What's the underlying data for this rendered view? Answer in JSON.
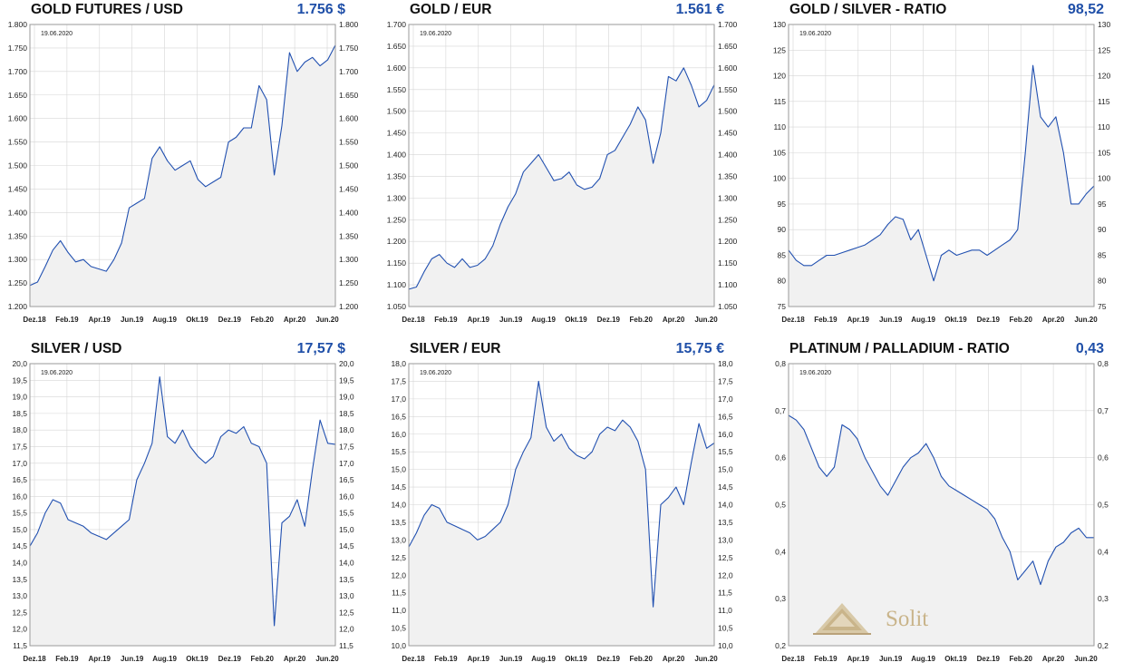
{
  "colors": {
    "line": "#2150b0",
    "fill": "#f1f1f1",
    "value": "#1f4fa8",
    "grid": "#d6d6d6"
  },
  "watermark": {
    "icon": "pyramid-icon",
    "text": "Solit"
  },
  "chart_data": [
    {
      "type": "line",
      "title": "GOLD FUTURES / USD",
      "value": "1.756 $",
      "date": "19.06.2020",
      "ylim": [
        1200,
        1800
      ],
      "yticks": [
        1200,
        1250,
        1300,
        1350,
        1400,
        1450,
        1500,
        1550,
        1600,
        1650,
        1700,
        1750,
        1800
      ],
      "decimals": 3,
      "x_labels": [
        "Dez.18",
        "Feb.19",
        "Apr.19",
        "Jun.19",
        "Aug.19",
        "Okt.19",
        "Dez.19",
        "Feb.20",
        "Apr.20",
        "Jun.20"
      ],
      "y": [
        1245,
        1252,
        1285,
        1320,
        1340,
        1315,
        1295,
        1300,
        1285,
        1280,
        1275,
        1300,
        1335,
        1410,
        1420,
        1430,
        1515,
        1540,
        1510,
        1490,
        1500,
        1510,
        1470,
        1455,
        1465,
        1475,
        1550,
        1560,
        1580,
        1580,
        1670,
        1640,
        1480,
        1585,
        1740,
        1700,
        1720,
        1730,
        1712,
        1725,
        1756
      ]
    },
    {
      "type": "line",
      "title": "GOLD / EUR",
      "value": "1.561 €",
      "date": "19.06.2020",
      "ylim": [
        1050,
        1700
      ],
      "yticks": [
        1050,
        1100,
        1150,
        1200,
        1250,
        1300,
        1350,
        1400,
        1450,
        1500,
        1550,
        1600,
        1650,
        1700
      ],
      "decimals": 3,
      "x_labels": [
        "Dez.18",
        "Feb.19",
        "Apr.19",
        "Jun.19",
        "Aug.19",
        "Okt.19",
        "Dez.19",
        "Feb.20",
        "Apr.20",
        "Jun.20"
      ],
      "y": [
        1090,
        1095,
        1130,
        1160,
        1170,
        1150,
        1140,
        1160,
        1140,
        1145,
        1160,
        1190,
        1240,
        1280,
        1310,
        1360,
        1380,
        1400,
        1370,
        1340,
        1345,
        1360,
        1330,
        1320,
        1325,
        1345,
        1400,
        1410,
        1440,
        1470,
        1510,
        1480,
        1380,
        1450,
        1580,
        1570,
        1600,
        1560,
        1510,
        1525,
        1561
      ]
    },
    {
      "type": "line",
      "title": "GOLD / SILVER - RATIO",
      "value": "98,52",
      "date": "19.06.2020",
      "ylim": [
        75,
        130
      ],
      "yticks": [
        75,
        80,
        85,
        90,
        95,
        100,
        105,
        110,
        115,
        120,
        125,
        130
      ],
      "decimals": 0,
      "x_labels": [
        "Dez.18",
        "Feb.19",
        "Apr.19",
        "Jun.19",
        "Aug.19",
        "Okt.19",
        "Dez.19",
        "Feb.20",
        "Apr.20",
        "Jun.20"
      ],
      "y": [
        86,
        84,
        83,
        83,
        84,
        85,
        85,
        85.5,
        86,
        86.5,
        87,
        88,
        89,
        91,
        92.5,
        92,
        88,
        90,
        85,
        80,
        85,
        86,
        85,
        85.5,
        86,
        86,
        85,
        86,
        87,
        88,
        90,
        105,
        122,
        112,
        110,
        112,
        105,
        95,
        95,
        97,
        98.52
      ]
    },
    {
      "type": "line",
      "title": "SILVER / USD",
      "value": "17,57 $",
      "date": "19.06.2020",
      "ylim": [
        11.5,
        20
      ],
      "yticks": [
        11.5,
        12,
        12.5,
        13,
        13.5,
        14,
        14.5,
        15,
        15.5,
        16,
        16.5,
        17,
        17.5,
        18,
        18.5,
        19,
        19.5,
        20
      ],
      "decimals": 1,
      "x_labels": [
        "Dez.18",
        "Feb.19",
        "Apr.19",
        "Jun.19",
        "Aug.19",
        "Okt.19",
        "Dez.19",
        "Feb.20",
        "Apr.20",
        "Jun.20"
      ],
      "y": [
        14.5,
        14.9,
        15.5,
        15.9,
        15.8,
        15.3,
        15.2,
        15.1,
        14.9,
        14.8,
        14.7,
        14.9,
        15.1,
        15.3,
        16.5,
        17.0,
        17.6,
        19.6,
        17.8,
        17.6,
        18.0,
        17.5,
        17.2,
        17.0,
        17.2,
        17.8,
        18.0,
        17.9,
        18.1,
        17.6,
        17.5,
        17.0,
        12.1,
        15.2,
        15.4,
        15.9,
        15.1,
        16.8,
        18.3,
        17.6,
        17.57
      ]
    },
    {
      "type": "line",
      "title": "SILVER / EUR",
      "value": "15,75 €",
      "date": "19.06.2020",
      "ylim": [
        10,
        18
      ],
      "yticks": [
        10,
        10.5,
        11,
        11.5,
        12,
        12.5,
        13,
        13.5,
        14,
        14.5,
        15,
        15.5,
        16,
        16.5,
        17,
        17.5,
        18
      ],
      "decimals": 1,
      "x_labels": [
        "Dez.18",
        "Feb.19",
        "Apr.19",
        "Jun.19",
        "Aug.19",
        "Okt.19",
        "Dez.19",
        "Feb.20",
        "Apr.20",
        "Jun.20"
      ],
      "y": [
        12.8,
        13.2,
        13.7,
        14.0,
        13.9,
        13.5,
        13.4,
        13.3,
        13.2,
        13.0,
        13.1,
        13.3,
        13.5,
        14.0,
        15.0,
        15.5,
        15.9,
        17.5,
        16.2,
        15.8,
        16.0,
        15.6,
        15.4,
        15.3,
        15.5,
        16.0,
        16.2,
        16.1,
        16.4,
        16.2,
        15.8,
        15.0,
        11.1,
        14.0,
        14.2,
        14.5,
        14.0,
        15.2,
        16.3,
        15.6,
        15.75
      ]
    },
    {
      "type": "line",
      "title": "PLATINUM / PALLADIUM - RATIO",
      "value": "0,43",
      "date": "19.06.2020",
      "ylim": [
        0.2,
        0.8
      ],
      "yticks": [
        0.2,
        0.3,
        0.4,
        0.5,
        0.6,
        0.7,
        0.8
      ],
      "decimals": 1,
      "x_labels": [
        "Dez.18",
        "Feb.19",
        "Apr.19",
        "Jun.19",
        "Aug.19",
        "Okt.19",
        "Dez.19",
        "Feb.20",
        "Apr.20",
        "Jun.20"
      ],
      "y": [
        0.69,
        0.68,
        0.66,
        0.62,
        0.58,
        0.56,
        0.58,
        0.67,
        0.66,
        0.64,
        0.6,
        0.57,
        0.54,
        0.52,
        0.55,
        0.58,
        0.6,
        0.61,
        0.63,
        0.6,
        0.56,
        0.54,
        0.53,
        0.52,
        0.51,
        0.5,
        0.49,
        0.47,
        0.43,
        0.4,
        0.34,
        0.36,
        0.38,
        0.33,
        0.38,
        0.41,
        0.42,
        0.44,
        0.45,
        0.43,
        0.43
      ]
    }
  ]
}
